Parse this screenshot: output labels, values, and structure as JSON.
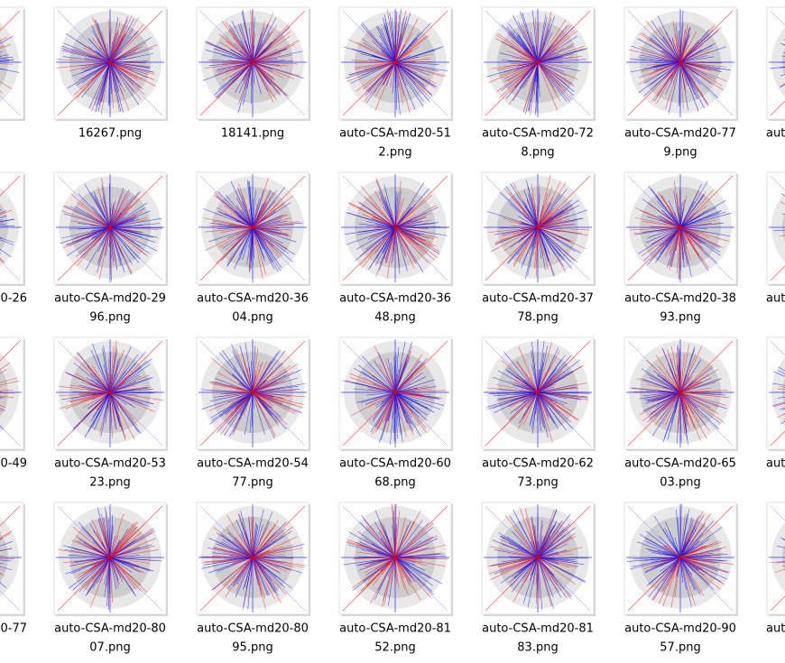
{
  "rows": [
    {
      "items": [
        {
          "lines": [
            "16267.png"
          ]
        },
        {
          "lines": [
            "18141.png"
          ]
        },
        {
          "lines": [
            "auto-CSA-md20-51",
            "2.png"
          ]
        },
        {
          "lines": [
            "auto-CSA-md20-72",
            "8.png"
          ]
        },
        {
          "lines": [
            "auto-CSA-md20-77",
            "9.png"
          ]
        }
      ],
      "right_partial": "aut"
    },
    {
      "left_partial": "20-26",
      "items": [
        {
          "lines": [
            "auto-CSA-md20-29",
            "96.png"
          ]
        },
        {
          "lines": [
            "auto-CSA-md20-36",
            "04.png"
          ]
        },
        {
          "lines": [
            "auto-CSA-md20-36",
            "48.png"
          ]
        },
        {
          "lines": [
            "auto-CSA-md20-37",
            "78.png"
          ]
        },
        {
          "lines": [
            "auto-CSA-md20-38",
            "93.png"
          ]
        }
      ],
      "right_partial": "aut"
    },
    {
      "left_partial": "20-49",
      "items": [
        {
          "lines": [
            "auto-CSA-md20-53",
            "23.png"
          ]
        },
        {
          "lines": [
            "auto-CSA-md20-54",
            "77.png"
          ]
        },
        {
          "lines": [
            "auto-CSA-md20-60",
            "68.png"
          ]
        },
        {
          "lines": [
            "auto-CSA-md20-62",
            "73.png"
          ]
        },
        {
          "lines": [
            "auto-CSA-md20-65",
            "03.png"
          ]
        }
      ],
      "right_partial": "aut"
    },
    {
      "left_partial": "20-77",
      "items": [
        {
          "lines": [
            "auto-CSA-md20-80",
            "07.png"
          ]
        },
        {
          "lines": [
            "auto-CSA-md20-80",
            "95.png"
          ]
        },
        {
          "lines": [
            "auto-CSA-md20-81",
            "52.png"
          ]
        },
        {
          "lines": [
            "auto-CSA-md20-81",
            "83.png"
          ]
        },
        {
          "lines": [
            "auto-CSA-md20-90",
            "57.png"
          ]
        }
      ],
      "right_partial": "aut"
    }
  ]
}
